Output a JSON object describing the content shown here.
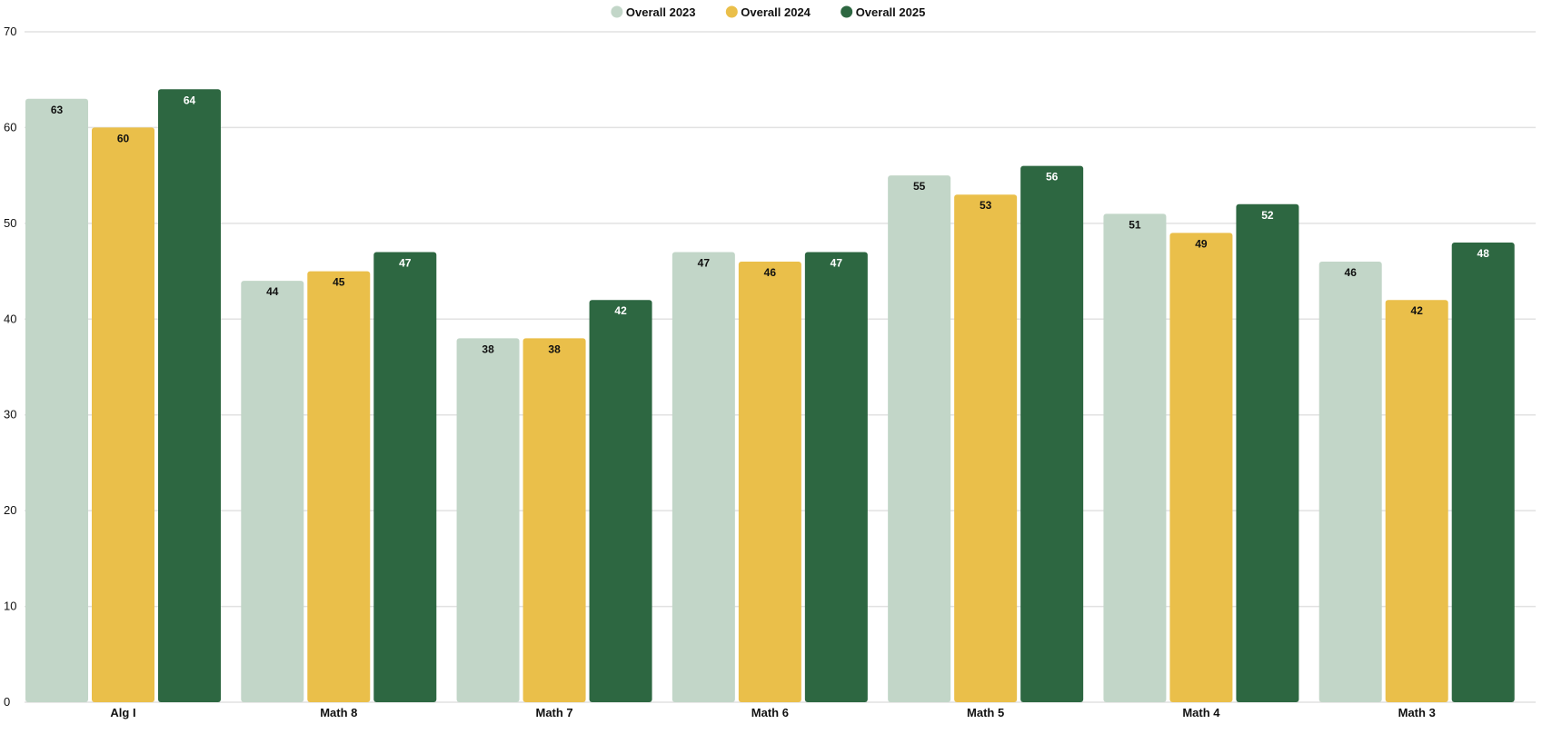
{
  "chart_data": {
    "type": "bar",
    "categories": [
      "Alg I",
      "Math 8",
      "Math 7",
      "Math 6",
      "Math 5",
      "Math 4",
      "Math 3"
    ],
    "series": [
      {
        "name": "Overall 2023",
        "color": "#c2d6c8",
        "label_color": "#111111",
        "values": [
          63,
          44,
          38,
          47,
          55,
          51,
          46
        ]
      },
      {
        "name": "Overall 2024",
        "color": "#eabf4a",
        "label_color": "#111111",
        "values": [
          60,
          45,
          38,
          46,
          53,
          49,
          42
        ]
      },
      {
        "name": "Overall 2025",
        "color": "#2d6741",
        "label_color": "#ffffff",
        "values": [
          64,
          47,
          42,
          47,
          56,
          52,
          48
        ]
      }
    ],
    "yticks": [
      0,
      10,
      20,
      30,
      40,
      50,
      60,
      70
    ],
    "ylim": [
      0,
      70
    ],
    "grid": true,
    "legend_position": "top-center",
    "title": "",
    "xlabel": "",
    "ylabel": ""
  }
}
